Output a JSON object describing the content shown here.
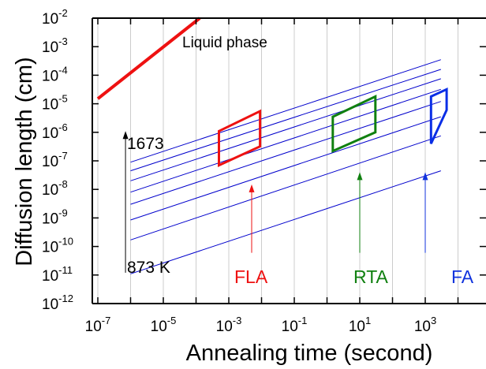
{
  "chart_data": {
    "type": "line",
    "xlabel": "Annealing time (second)",
    "ylabel": "Diffusion length (cm)",
    "xscale": "log",
    "yscale": "log",
    "xlim": [
      1e-07,
      10000.0
    ],
    "ylim": [
      1e-12,
      0.01
    ],
    "grid": "vertical-only",
    "x_ticks": [
      {
        "value": 1e-07,
        "base": "10",
        "exp": "-7"
      },
      {
        "value": 1e-05,
        "base": "10",
        "exp": "-5"
      },
      {
        "value": 0.001,
        "base": "10",
        "exp": "-3"
      },
      {
        "value": 0.1,
        "base": "10",
        "exp": "-1"
      },
      {
        "value": 10.0,
        "base": "10",
        "exp": "1"
      },
      {
        "value": 1000.0,
        "base": "10",
        "exp": "3"
      }
    ],
    "y_ticks": [
      {
        "value": 0.01,
        "base": "10",
        "exp": "-2"
      },
      {
        "value": 0.001,
        "base": "10",
        "exp": "-3"
      },
      {
        "value": 0.0001,
        "base": "10",
        "exp": "-4"
      },
      {
        "value": 1e-05,
        "base": "10",
        "exp": "-5"
      },
      {
        "value": 1e-06,
        "base": "10",
        "exp": "-6"
      },
      {
        "value": 1e-07,
        "base": "10",
        "exp": "-7"
      },
      {
        "value": 1e-08,
        "base": "10",
        "exp": "-8"
      },
      {
        "value": 1e-09,
        "base": "10",
        "exp": "-9"
      },
      {
        "value": 1e-10,
        "base": "10",
        "exp": "-10"
      },
      {
        "value": 1e-11,
        "base": "10",
        "exp": "-11"
      },
      {
        "value": 1e-12,
        "base": "10",
        "exp": "-12"
      }
    ],
    "series": [
      {
        "color": "#0000cc",
        "points": [
          [
            1e-06,
            9e-08
          ],
          [
            3000.0,
            0.00035
          ]
        ]
      },
      {
        "color": "#0000cc",
        "points": [
          [
            1e-06,
            4.5e-08
          ],
          [
            3000.0,
            0.00016
          ]
        ]
      },
      {
        "color": "#0000cc",
        "points": [
          [
            1e-06,
            2e-08
          ],
          [
            3000.0,
            7.5e-05
          ]
        ]
      },
      {
        "color": "#0000cc",
        "points": [
          [
            1e-06,
            8e-09
          ],
          [
            3000.0,
            3.2e-05
          ]
        ]
      },
      {
        "color": "#0000cc",
        "points": [
          [
            1e-06,
            3e-09
          ],
          [
            3000.0,
            1.2e-05
          ]
        ]
      },
      {
        "color": "#0000cc",
        "points": [
          [
            1e-06,
            8.5e-10
          ],
          [
            3000.0,
            3.5e-06
          ]
        ]
      },
      {
        "color": "#0000cc",
        "points": [
          [
            1e-06,
            1.7e-10
          ],
          [
            3000.0,
            7.5e-07
          ]
        ]
      },
      {
        "color": "#0000cc",
        "points": [
          [
            1e-06,
            1.1e-11
          ],
          [
            3000.0,
            4.5e-08
          ]
        ]
      },
      {
        "color": "#ee1111",
        "width": 4,
        "points": [
          [
            1e-07,
            1.5e-05
          ],
          [
            0.00013,
            0.01
          ]
        ]
      }
    ],
    "regions": [
      {
        "label": "FLA",
        "color": "#ee1111",
        "points": [
          [
            0.0005,
            1.1e-06
          ],
          [
            0.009,
            5.5e-06
          ],
          [
            0.009,
            3.2e-07
          ],
          [
            0.0005,
            7e-08
          ]
        ]
      },
      {
        "label": "RTA",
        "color": "#108010",
        "points": [
          [
            1.5,
            3.5e-06
          ],
          [
            30.0,
            1.8e-05
          ],
          [
            30.0,
            1e-06
          ],
          [
            1.5,
            2.2e-07
          ]
        ]
      },
      {
        "label": "FA",
        "color": "#0a2ee6",
        "points": [
          [
            1500.0,
            1.8e-05
          ],
          [
            4500.0,
            3.2e-05
          ],
          [
            4500.0,
            6e-06
          ],
          [
            1500.0,
            4e-07
          ]
        ]
      }
    ],
    "arrows": [
      {
        "color": "#ee1111",
        "x": 0.005,
        "y_from": 6e-11,
        "y_to": 1.5e-08
      },
      {
        "color": "#108010",
        "x": 10.0,
        "y_from": 6e-11,
        "y_to": 4e-08
      },
      {
        "color": "#1133dd",
        "x": 1000.0,
        "y_from": 6e-11,
        "y_to": 4e-08
      },
      {
        "color": "#000000",
        "x": 7e-07,
        "y_from": 1.2e-11,
        "y_to": 1.1e-06
      }
    ],
    "annotations": {
      "liquid": "Liquid phase",
      "temp_high": "1673",
      "temp_low": "873 K",
      "fla": "FLA",
      "rta": "RTA",
      "fa": "FA"
    }
  }
}
